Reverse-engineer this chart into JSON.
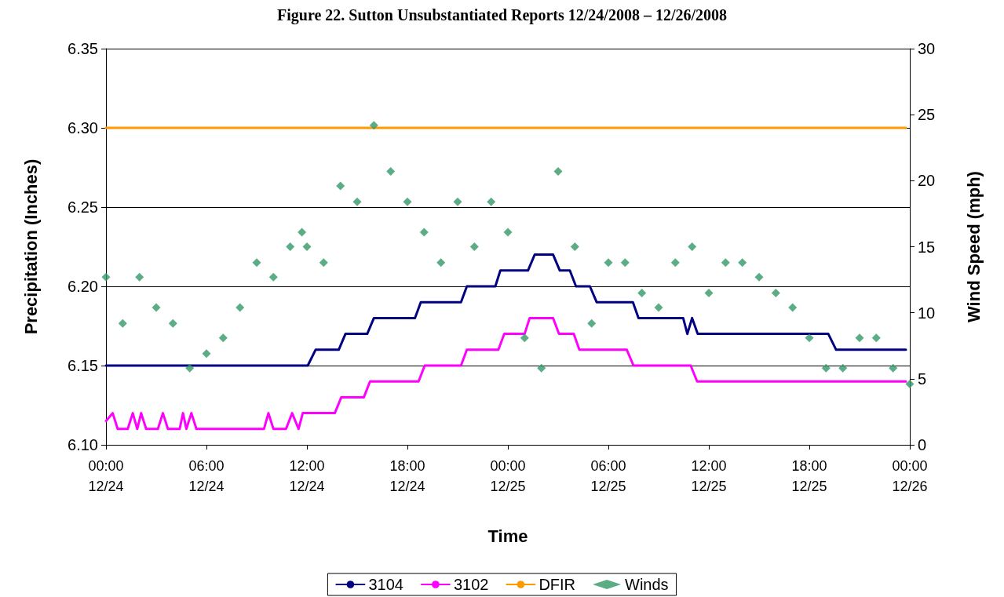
{
  "chart_data": {
    "type": "line",
    "title": "Figure 22. Sutton Unsubstantiated Reports 12/24/2008 – 12/26/2008",
    "xlabel": "Time",
    "ylabel": "Precipitation (Inches)",
    "y2label": "Wind Speed (mph)",
    "xlim": [
      "2008-12-24T00:00",
      "2008-12-26T00:00"
    ],
    "xticks": [
      {
        "value": "2008-12-24T00:00",
        "label": "00:00\n12/24"
      },
      {
        "value": "2008-12-24T06:00",
        "label": "06:00\n12/24"
      },
      {
        "value": "2008-12-24T12:00",
        "label": "12:00\n12/24"
      },
      {
        "value": "2008-12-24T18:00",
        "label": "18:00\n12/24"
      },
      {
        "value": "2008-12-25T00:00",
        "label": "00:00\n12/25"
      },
      {
        "value": "2008-12-25T06:00",
        "label": "06:00\n12/25"
      },
      {
        "value": "2008-12-25T12:00",
        "label": "12:00\n12/25"
      },
      {
        "value": "2008-12-25T18:00",
        "label": "18:00\n12/25"
      },
      {
        "value": "2008-12-26T00:00",
        "label": "00:00\n12/26"
      }
    ],
    "ylim": [
      6.1,
      6.35
    ],
    "yticks": [
      {
        "value": 6.1,
        "label": "6.10"
      },
      6.15,
      {
        "value": 6.2,
        "label": "6.20"
      },
      6.25,
      {
        "value": 6.3,
        "label": "6.30"
      },
      6.35
    ],
    "y2lim": [
      0,
      30
    ],
    "y2ticks": [
      0,
      5,
      10,
      15,
      20,
      25,
      30
    ],
    "grid": "y",
    "legend": "bottom",
    "line_style": "solid",
    "series": [
      {
        "name": "3104",
        "color": "#000080",
        "marker": "none",
        "x": [
          "2008-12-24T00:00",
          "2008-12-24T12:03",
          "2008-12-24T12:31",
          "2008-12-24T13:54",
          "2008-12-24T14:18",
          "2008-12-24T15:36",
          "2008-12-24T16:00",
          "2008-12-24T18:27",
          "2008-12-24T18:48",
          "2008-12-24T21:12",
          "2008-12-24T21:33",
          "2008-12-24T23:15",
          "2008-12-24T23:33",
          "2008-12-25T01:12",
          "2008-12-25T01:36",
          "2008-12-25T02:42",
          "2008-12-25T03:06",
          "2008-12-25T03:42",
          "2008-12-25T04:04",
          "2008-12-25T04:54",
          "2008-12-25T05:18",
          "2008-12-25T07:28",
          "2008-12-25T07:48",
          "2008-12-25T10:28",
          "2008-12-25T10:43",
          "2008-12-25T11:00",
          "2008-12-25T11:20",
          "2008-12-25T19:08",
          "2008-12-25T19:36",
          "2008-12-25T23:46"
        ],
        "values": [
          6.15,
          6.15,
          6.16,
          6.16,
          6.17,
          6.17,
          6.18,
          6.18,
          6.19,
          6.19,
          6.2,
          6.2,
          6.21,
          6.21,
          6.22,
          6.22,
          6.21,
          6.21,
          6.2,
          6.2,
          6.19,
          6.19,
          6.18,
          6.18,
          6.17,
          6.18,
          6.17,
          6.17,
          6.16,
          6.16
        ]
      },
      {
        "name": "3102",
        "color": "#ff00ff",
        "marker": "none",
        "x": [
          "2008-12-24T00:00",
          "2008-12-24T00:24",
          "2008-12-24T00:42",
          "2008-12-24T01:18",
          "2008-12-24T01:36",
          "2008-12-24T01:52",
          "2008-12-24T02:06",
          "2008-12-24T02:24",
          "2008-12-24T03:06",
          "2008-12-24T03:24",
          "2008-12-24T03:42",
          "2008-12-24T04:24",
          "2008-12-24T04:36",
          "2008-12-24T04:48",
          "2008-12-24T05:06",
          "2008-12-24T05:24",
          "2008-12-24T09:26",
          "2008-12-24T09:42",
          "2008-12-24T10:00",
          "2008-12-24T10:45",
          "2008-12-24T11:07",
          "2008-12-24T11:30",
          "2008-12-24T11:45",
          "2008-12-24T13:40",
          "2008-12-24T14:03",
          "2008-12-24T15:24",
          "2008-12-24T15:46",
          "2008-12-24T18:40",
          "2008-12-24T19:02",
          "2008-12-24T21:12",
          "2008-12-24T21:33",
          "2008-12-24T23:26",
          "2008-12-24T23:47",
          "2008-12-25T01:00",
          "2008-12-25T01:18",
          "2008-12-25T02:42",
          "2008-12-25T03:03",
          "2008-12-25T03:56",
          "2008-12-25T04:16",
          "2008-12-25T07:06",
          "2008-12-25T07:30",
          "2008-12-25T10:55",
          "2008-12-25T11:18",
          "2008-12-25T23:46"
        ],
        "values": [
          6.115,
          6.12,
          6.11,
          6.11,
          6.12,
          6.11,
          6.12,
          6.11,
          6.11,
          6.12,
          6.11,
          6.11,
          6.12,
          6.11,
          6.12,
          6.11,
          6.11,
          6.12,
          6.11,
          6.11,
          6.12,
          6.11,
          6.12,
          6.12,
          6.13,
          6.13,
          6.14,
          6.14,
          6.15,
          6.15,
          6.16,
          6.16,
          6.17,
          6.17,
          6.18,
          6.18,
          6.17,
          6.17,
          6.16,
          6.16,
          6.15,
          6.15,
          6.14,
          6.14
        ]
      },
      {
        "name": "DFIR",
        "color": "#ff9900",
        "marker": "none",
        "x": [
          "2008-12-24T00:00",
          "2008-12-25T23:46"
        ],
        "values": [
          6.3,
          6.3
        ]
      },
      {
        "name": "Winds",
        "type": "scatter",
        "axis": "y2",
        "color": "#339966",
        "marker": "diamond",
        "x": [
          "2008-12-24T00:00",
          "2008-12-24T01:00",
          "2008-12-24T02:00",
          "2008-12-24T03:00",
          "2008-12-24T04:00",
          "2008-12-24T05:00",
          "2008-12-24T06:00",
          "2008-12-24T07:00",
          "2008-12-24T08:00",
          "2008-12-24T09:00",
          "2008-12-24T10:00",
          "2008-12-24T11:00",
          "2008-12-24T11:42",
          "2008-12-24T12:00",
          "2008-12-24T13:00",
          "2008-12-24T14:00",
          "2008-12-24T15:00",
          "2008-12-24T16:00",
          "2008-12-24T17:00",
          "2008-12-24T18:00",
          "2008-12-24T19:00",
          "2008-12-24T20:00",
          "2008-12-24T21:00",
          "2008-12-24T22:00",
          "2008-12-24T23:00",
          "2008-12-25T00:00",
          "2008-12-25T01:00",
          "2008-12-25T02:00",
          "2008-12-25T03:00",
          "2008-12-25T04:00",
          "2008-12-25T05:00",
          "2008-12-25T06:00",
          "2008-12-25T07:00",
          "2008-12-25T08:00",
          "2008-12-25T09:00",
          "2008-12-25T10:00",
          "2008-12-25T11:00",
          "2008-12-25T12:00",
          "2008-12-25T13:00",
          "2008-12-25T14:00",
          "2008-12-25T15:00",
          "2008-12-25T16:00",
          "2008-12-25T17:00",
          "2008-12-25T18:00",
          "2008-12-25T19:00",
          "2008-12-25T20:00",
          "2008-12-25T21:00",
          "2008-12-25T22:00",
          "2008-12-25T23:00",
          "2008-12-26T00:00"
        ],
        "values": [
          12.7,
          9.2,
          12.7,
          10.4,
          9.2,
          5.8,
          6.9,
          8.1,
          10.4,
          13.8,
          12.7,
          15.0,
          16.1,
          15.0,
          13.8,
          19.6,
          18.4,
          24.2,
          20.7,
          18.4,
          16.1,
          13.8,
          18.4,
          15.0,
          18.4,
          16.1,
          8.1,
          5.8,
          20.7,
          15.0,
          9.2,
          13.8,
          13.8,
          11.5,
          10.4,
          13.8,
          15.0,
          11.5,
          13.8,
          13.8,
          12.7,
          11.5,
          10.4,
          8.1,
          5.8,
          5.8,
          8.1,
          8.1,
          5.8,
          4.6
        ]
      }
    ]
  }
}
